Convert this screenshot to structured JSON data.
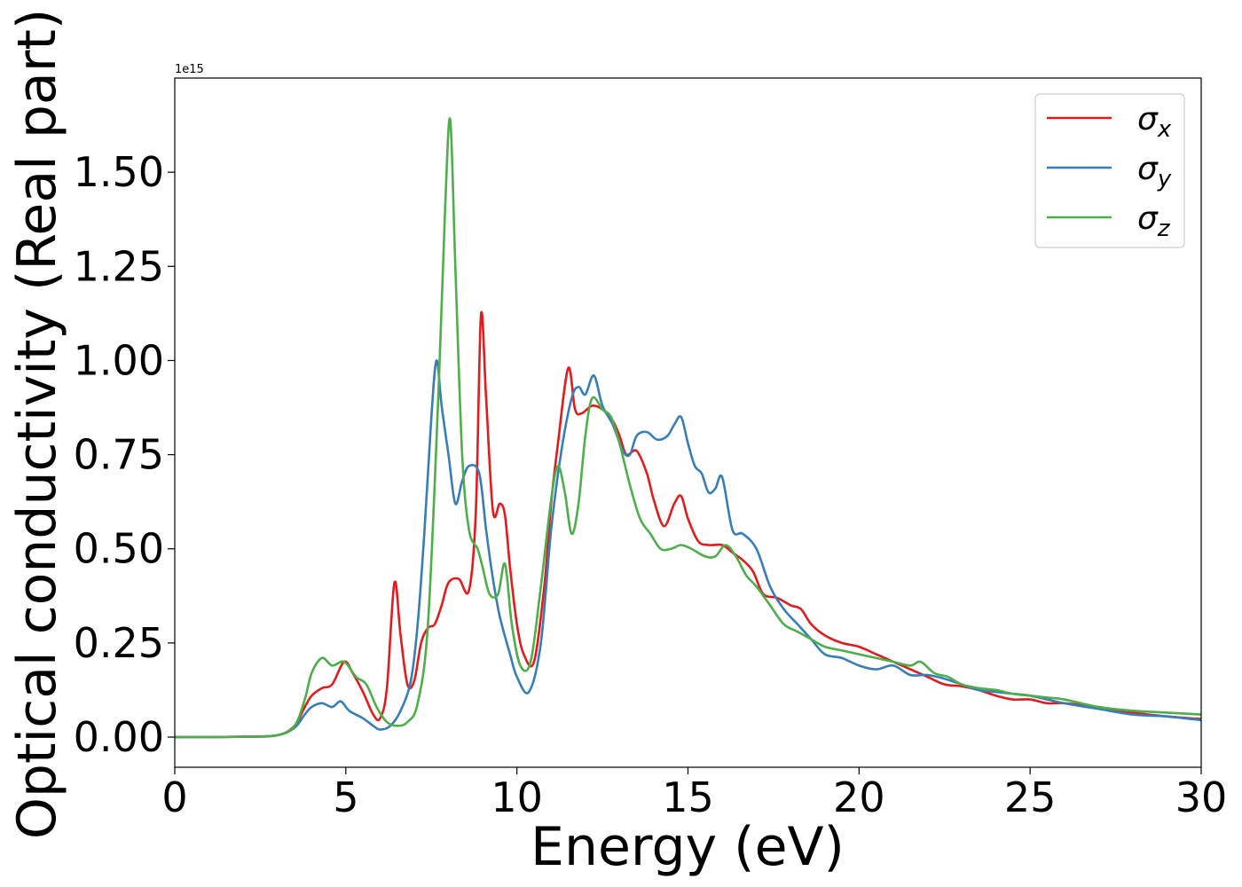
{
  "chart_data": {
    "type": "line",
    "xlabel": "Energy (eV)",
    "ylabel": "Optical conductivity (Real part)",
    "xlim": [
      0,
      30
    ],
    "ylim": [
      -0.08,
      1.75
    ],
    "y_offset_label": "1e15",
    "x_ticks": [
      "0",
      "5",
      "10",
      "15",
      "20",
      "25",
      "30"
    ],
    "y_ticks": [
      "0.00",
      "0.25",
      "0.50",
      "0.75",
      "1.00",
      "1.25",
      "1.50"
    ],
    "grid": false,
    "legend_position": "top-right",
    "series": [
      {
        "name": "σx",
        "symbol": "σ",
        "subscript": "x",
        "color": "#e41a1c",
        "x": [
          0,
          2,
          3,
          3.5,
          3.8,
          4.0,
          4.3,
          4.6,
          4.95,
          5.2,
          5.5,
          5.8,
          6.0,
          6.2,
          6.42,
          6.6,
          6.8,
          7.0,
          7.2,
          7.4,
          7.6,
          7.8,
          8.0,
          8.3,
          8.6,
          8.8,
          8.95,
          9.1,
          9.3,
          9.5,
          9.65,
          9.8,
          10.0,
          10.2,
          10.5,
          10.8,
          11.0,
          11.2,
          11.5,
          11.7,
          11.9,
          12.2,
          12.5,
          12.8,
          13.0,
          13.2,
          13.5,
          13.8,
          14.0,
          14.3,
          14.6,
          14.8,
          15.0,
          15.3,
          15.6,
          16.0,
          16.3,
          16.6,
          16.9,
          17.2,
          17.6,
          18.0,
          18.3,
          18.6,
          19.0,
          19.5,
          20.0,
          20.5,
          21.0,
          21.5,
          22.0,
          22.5,
          23.0,
          23.5,
          24.0,
          24.5,
          25.0,
          25.5,
          26.0,
          27.0,
          28.0,
          29.0,
          30.0
        ],
        "values": [
          0,
          0.001,
          0.005,
          0.03,
          0.08,
          0.11,
          0.13,
          0.14,
          0.2,
          0.17,
          0.12,
          0.06,
          0.05,
          0.13,
          0.41,
          0.27,
          0.14,
          0.15,
          0.25,
          0.29,
          0.3,
          0.35,
          0.41,
          0.42,
          0.39,
          0.6,
          1.12,
          0.9,
          0.6,
          0.62,
          0.59,
          0.45,
          0.3,
          0.22,
          0.2,
          0.4,
          0.62,
          0.78,
          0.98,
          0.87,
          0.86,
          0.88,
          0.87,
          0.84,
          0.8,
          0.75,
          0.76,
          0.7,
          0.63,
          0.56,
          0.62,
          0.64,
          0.58,
          0.52,
          0.51,
          0.51,
          0.49,
          0.47,
          0.44,
          0.38,
          0.37,
          0.35,
          0.34,
          0.3,
          0.27,
          0.25,
          0.24,
          0.22,
          0.2,
          0.18,
          0.16,
          0.14,
          0.135,
          0.125,
          0.11,
          0.1,
          0.1,
          0.09,
          0.09,
          0.08,
          0.065,
          0.055,
          0.048
        ]
      },
      {
        "name": "σy",
        "symbol": "σ",
        "subscript": "y",
        "color": "#377eb8",
        "x": [
          0,
          2,
          3,
          3.5,
          3.8,
          4.0,
          4.3,
          4.6,
          4.85,
          5.1,
          5.5,
          5.8,
          6.0,
          6.3,
          6.6,
          6.9,
          7.1,
          7.3,
          7.5,
          7.65,
          7.8,
          8.0,
          8.2,
          8.4,
          8.6,
          8.9,
          9.1,
          9.3,
          9.5,
          9.8,
          10.0,
          10.35,
          10.7,
          11.0,
          11.3,
          11.6,
          11.8,
          12.0,
          12.25,
          12.5,
          12.8,
          13.1,
          13.3,
          13.5,
          13.8,
          14.1,
          14.4,
          14.6,
          14.8,
          15.0,
          15.2,
          15.4,
          15.6,
          15.8,
          16.0,
          16.3,
          16.6,
          17.0,
          17.4,
          17.8,
          18.2,
          18.6,
          19.0,
          19.5,
          20.0,
          20.5,
          21.0,
          21.5,
          22.0,
          22.5,
          23.0,
          23.5,
          24.0,
          24.5,
          25.0,
          26.0,
          27.0,
          28.0,
          29.0,
          30.0
        ],
        "values": [
          0,
          0.001,
          0.005,
          0.025,
          0.06,
          0.08,
          0.09,
          0.08,
          0.095,
          0.07,
          0.05,
          0.03,
          0.02,
          0.03,
          0.07,
          0.15,
          0.3,
          0.55,
          0.85,
          1.0,
          0.88,
          0.75,
          0.62,
          0.68,
          0.72,
          0.7,
          0.55,
          0.42,
          0.32,
          0.22,
          0.16,
          0.12,
          0.25,
          0.55,
          0.76,
          0.9,
          0.93,
          0.91,
          0.96,
          0.88,
          0.83,
          0.76,
          0.75,
          0.8,
          0.81,
          0.79,
          0.8,
          0.83,
          0.85,
          0.78,
          0.72,
          0.7,
          0.65,
          0.66,
          0.69,
          0.55,
          0.54,
          0.5,
          0.4,
          0.34,
          0.3,
          0.26,
          0.22,
          0.21,
          0.19,
          0.18,
          0.19,
          0.165,
          0.165,
          0.155,
          0.14,
          0.125,
          0.12,
          0.115,
          0.11,
          0.09,
          0.075,
          0.06,
          0.055,
          0.045
        ]
      },
      {
        "name": "σz",
        "symbol": "σ",
        "subscript": "z",
        "color": "#4daf4a",
        "x": [
          0,
          2,
          3,
          3.5,
          3.8,
          4.0,
          4.3,
          4.6,
          4.95,
          5.3,
          5.6,
          5.9,
          6.2,
          6.5,
          6.8,
          7.1,
          7.4,
          7.7,
          7.9,
          8.05,
          8.2,
          8.4,
          8.6,
          8.85,
          9.0,
          9.2,
          9.45,
          9.65,
          9.85,
          10.1,
          10.4,
          10.7,
          11.0,
          11.2,
          11.4,
          11.6,
          11.8,
          12.0,
          12.2,
          12.5,
          12.75,
          13.0,
          13.3,
          13.6,
          13.9,
          14.2,
          14.5,
          14.8,
          15.1,
          15.5,
          15.8,
          16.1,
          16.4,
          16.7,
          17.0,
          17.4,
          17.8,
          18.2,
          18.6,
          19.0,
          19.5,
          20.0,
          20.5,
          21.0,
          21.5,
          21.8,
          22.2,
          22.6,
          23.0,
          23.5,
          24.0,
          24.5,
          25.0,
          25.5,
          26.0,
          27.0,
          28.0,
          29.0,
          30.0
        ],
        "values": [
          0,
          0.001,
          0.005,
          0.03,
          0.1,
          0.17,
          0.21,
          0.19,
          0.2,
          0.16,
          0.14,
          0.08,
          0.04,
          0.03,
          0.04,
          0.09,
          0.3,
          0.9,
          1.4,
          1.64,
          1.25,
          0.75,
          0.55,
          0.5,
          0.45,
          0.38,
          0.38,
          0.46,
          0.3,
          0.19,
          0.2,
          0.4,
          0.63,
          0.72,
          0.65,
          0.54,
          0.62,
          0.8,
          0.9,
          0.87,
          0.85,
          0.78,
          0.67,
          0.58,
          0.54,
          0.5,
          0.5,
          0.51,
          0.5,
          0.48,
          0.48,
          0.51,
          0.48,
          0.43,
          0.4,
          0.35,
          0.3,
          0.28,
          0.26,
          0.24,
          0.23,
          0.22,
          0.21,
          0.2,
          0.19,
          0.2,
          0.17,
          0.16,
          0.14,
          0.13,
          0.125,
          0.115,
          0.11,
          0.105,
          0.1,
          0.08,
          0.07,
          0.065,
          0.06
        ]
      }
    ]
  }
}
